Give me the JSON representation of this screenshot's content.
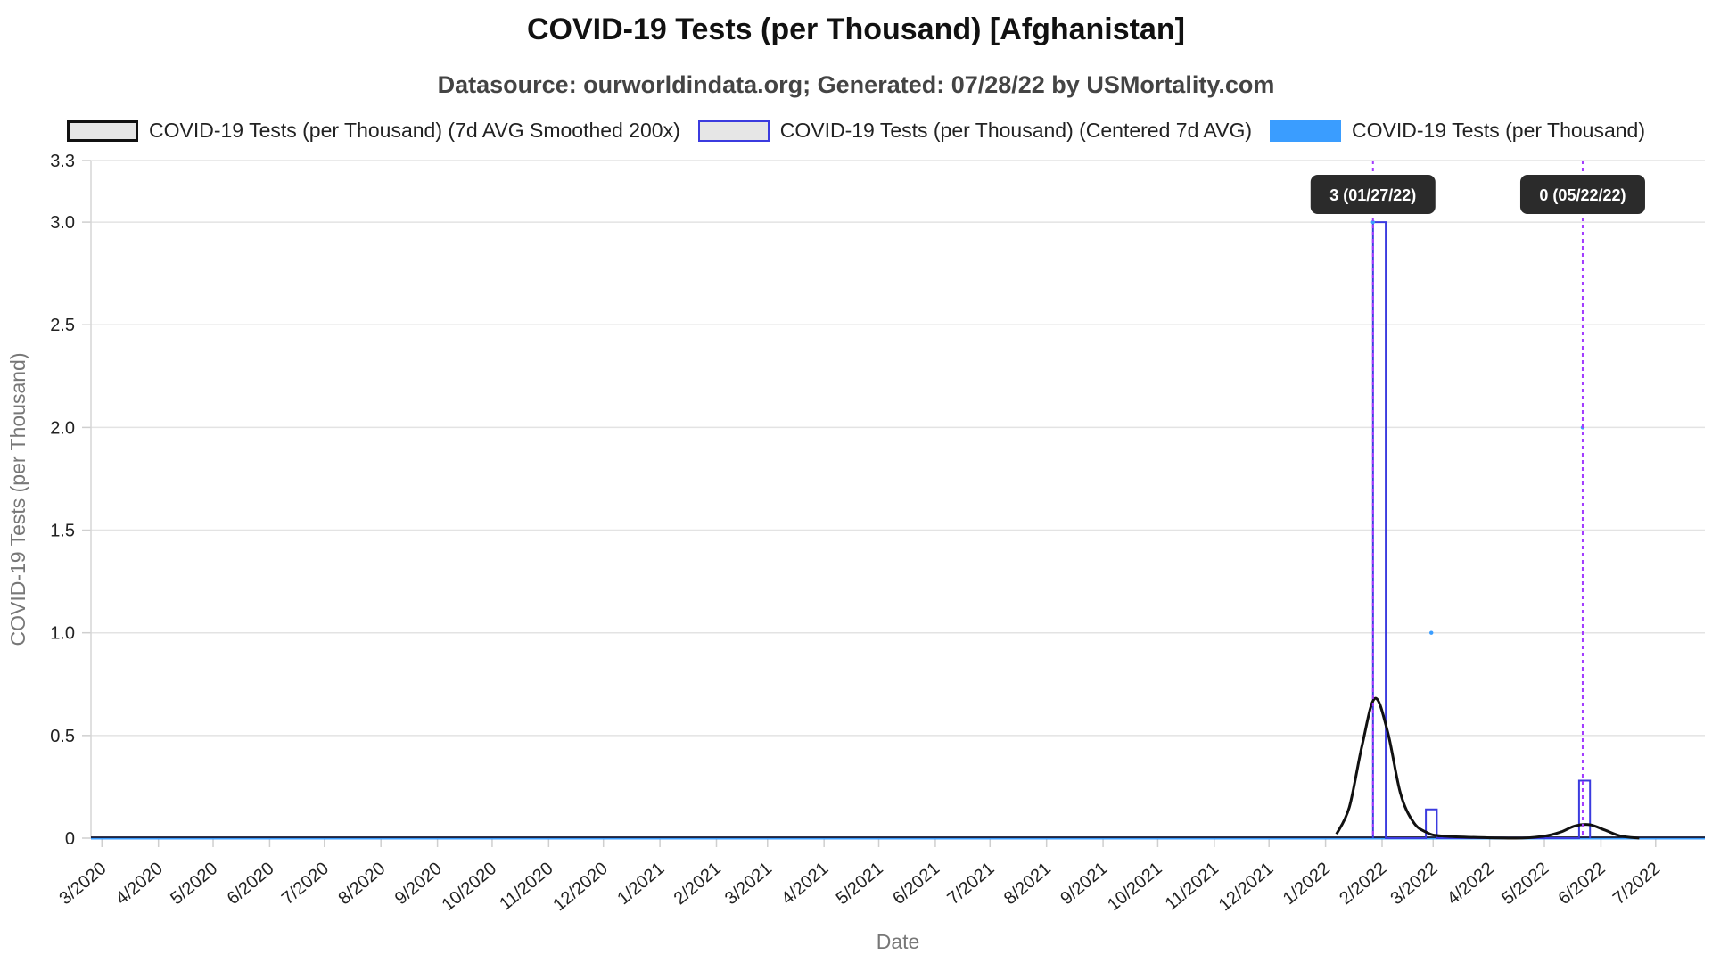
{
  "chart": {
    "title": "COVID-19 Tests (per Thousand) [Afghanistan]",
    "subtitle": "Datasource: ourworldindata.org; Generated: 07/28/22 by USMortality.com"
  },
  "chart_data": {
    "type": "line",
    "title": "COVID-19 Tests (per Thousand) [Afghanistan]",
    "subtitle": "Datasource: ourworldindata.org; Generated: 07/28/22 by USMortality.com",
    "xlabel": "Date",
    "ylabel": "COVID-19 Tests (per Thousand)",
    "xlim": [
      "2020-02-24",
      "2022-07-28"
    ],
    "ylim": [
      0,
      3.3
    ],
    "y_ticks": [
      "0",
      "0.5",
      "1.0",
      "1.5",
      "2.0",
      "2.5",
      "3.0",
      "3.3"
    ],
    "x_ticks": [
      "3/2020",
      "4/2020",
      "5/2020",
      "6/2020",
      "7/2020",
      "8/2020",
      "9/2020",
      "10/2020",
      "11/2020",
      "12/2020",
      "1/2021",
      "2/2021",
      "3/2021",
      "4/2021",
      "5/2021",
      "6/2021",
      "7/2021",
      "8/2021",
      "9/2021",
      "10/2021",
      "11/2021",
      "12/2021",
      "1/2022",
      "2/2022",
      "3/2022",
      "4/2022",
      "5/2022",
      "6/2022",
      "7/2022"
    ],
    "grid": true,
    "legend_position": "top",
    "series": [
      {
        "name": "COVID-19 Tests (per Thousand) (7d AVG Smoothed 200x)",
        "color": "#111111",
        "style": "line",
        "points": [
          [
            "2022-01-07",
            0.02
          ],
          [
            "2022-01-14",
            0.15
          ],
          [
            "2022-01-21",
            0.45
          ],
          [
            "2022-01-28",
            0.68
          ],
          [
            "2022-02-04",
            0.52
          ],
          [
            "2022-02-11",
            0.22
          ],
          [
            "2022-02-18",
            0.08
          ],
          [
            "2022-02-25",
            0.03
          ],
          [
            "2022-03-07",
            0.01
          ],
          [
            "2022-04-15",
            0.0
          ],
          [
            "2022-05-01",
            0.01
          ],
          [
            "2022-05-10",
            0.03
          ],
          [
            "2022-05-18",
            0.06
          ],
          [
            "2022-05-26",
            0.065
          ],
          [
            "2022-06-03",
            0.04
          ],
          [
            "2022-06-12",
            0.01
          ],
          [
            "2022-06-22",
            0.0
          ]
        ]
      },
      {
        "name": "COVID-19 Tests (per Thousand) (Centered 7d AVG)",
        "color": "#3b3bdf",
        "style": "step",
        "points": [
          [
            "2022-01-27",
            0
          ],
          [
            "2022-01-27",
            3.0
          ],
          [
            "2022-02-03",
            3.0
          ],
          [
            "2022-02-03",
            0
          ],
          [
            "2022-02-25",
            0
          ],
          [
            "2022-02-25",
            0.14
          ],
          [
            "2022-03-03",
            0.14
          ],
          [
            "2022-03-03",
            0
          ],
          [
            "2022-05-20",
            0
          ],
          [
            "2022-05-20",
            0.28
          ],
          [
            "2022-05-26",
            0.28
          ],
          [
            "2022-05-26",
            0
          ]
        ]
      },
      {
        "name": "COVID-19 Tests (per Thousand)",
        "color": "#3a9dff",
        "style": "points",
        "points": [
          [
            "2022-01-27",
            3
          ],
          [
            "2022-02-28",
            1
          ],
          [
            "2022-05-22",
            2
          ]
        ]
      }
    ],
    "annotations": [
      {
        "date": "2022-01-27",
        "label": "3 (01/27/22)"
      },
      {
        "date": "2022-05-22",
        "label": "0 (05/22/22)"
      }
    ]
  }
}
